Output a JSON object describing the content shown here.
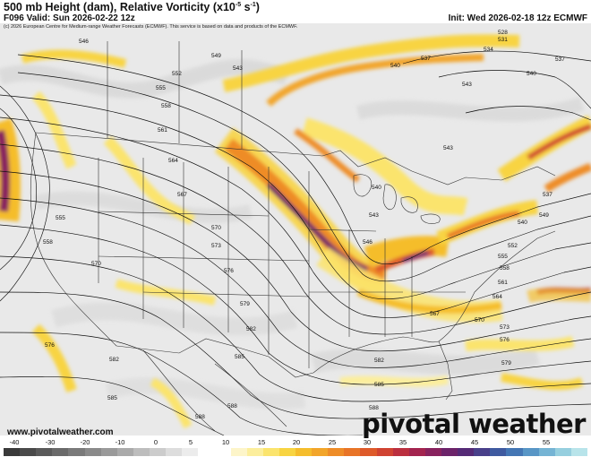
{
  "header": {
    "title": "500 mb Height (dam), Relative Vorticity (x10",
    "title_sup": "-5",
    "title_sup_unit": "s",
    "title_sup2": "-1",
    "title_end": ")",
    "valid": "F096 Valid: Sun 2026-02-22 12z",
    "init": "Init: Wed 2026-02-18 12z ECMWF",
    "copyright": "(c) 2026 European Centre for Medium-range Weather Forecasts (ECMWF). This service is based on data and products of the ECMWF."
  },
  "watermark": {
    "site": "www.pivotalweather.com",
    "brand": "pivotal weather"
  },
  "height_labels": {
    "west": [
      "546",
      "552",
      "555",
      "558",
      "561",
      "564",
      "567",
      "570",
      "573",
      "576",
      "579",
      "582",
      "585",
      "588",
      "555",
      "558",
      "570",
      "576",
      "582",
      "585",
      "588",
      "549",
      "543"
    ],
    "east": [
      "528",
      "531",
      "534",
      "537",
      "540",
      "543",
      "540",
      "537",
      "540",
      "543",
      "546",
      "549",
      "552",
      "555",
      "558",
      "561",
      "564",
      "567",
      "570",
      "573",
      "576",
      "579",
      "582",
      "585",
      "588",
      "537",
      "540",
      "543"
    ]
  },
  "colorbar": {
    "labels": [
      "-40",
      "-30",
      "-20",
      "-10",
      "0",
      "5",
      "10",
      "15",
      "20",
      "25",
      "30",
      "35",
      "40",
      "45",
      "50",
      "55"
    ],
    "colors": [
      "#3a3a3a",
      "#4a4a4a",
      "#5a5a5a",
      "#6a6a6a",
      "#7a7a7a",
      "#8a8a8a",
      "#9a9a9a",
      "#aaaaaa",
      "#bdbdbd",
      "#cccccc",
      "#dddddd",
      "#ececec",
      "#ffffff",
      "#ffffff",
      "#fdf5c9",
      "#fcee9c",
      "#fbe46d",
      "#f8d442",
      "#f5bd2c",
      "#f2a52a",
      "#ee8c28",
      "#e87427",
      "#de5a2a",
      "#d04332",
      "#bb2f3f",
      "#a3244f",
      "#88225e",
      "#6c236a",
      "#552a76",
      "#49408a",
      "#3f5aa0",
      "#4476b4",
      "#5896c6",
      "#75b4d4",
      "#96cfdf",
      "#b8e4ea"
    ]
  }
}
